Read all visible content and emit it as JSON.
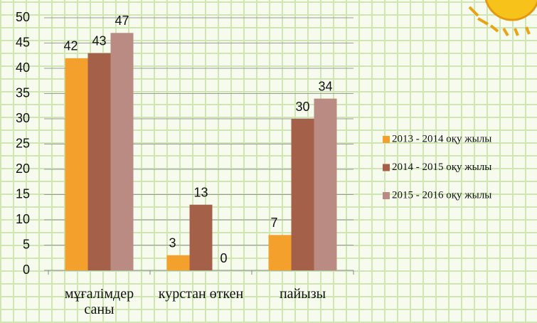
{
  "chart_data": {
    "type": "bar",
    "categories": [
      "мұғалімдер саны",
      "курстан өткен",
      "пайызы"
    ],
    "series": [
      {
        "name": "2013 - 2014 оқу жылы",
        "color": "#f3a12c",
        "values": [
          42,
          3,
          7
        ]
      },
      {
        "name": "2014 - 2015 оқу жылы",
        "color": "#a5604a",
        "values": [
          43,
          13,
          30
        ]
      },
      {
        "name": "2015 - 2016 оқу жылы",
        "color": "#b98b82",
        "values": [
          47,
          0,
          34
        ]
      }
    ],
    "ylim": [
      0,
      50
    ],
    "yticks": [
      0,
      5,
      10,
      15,
      20,
      25,
      30,
      35,
      40,
      45,
      50
    ],
    "grid": true,
    "legend": "right"
  }
}
